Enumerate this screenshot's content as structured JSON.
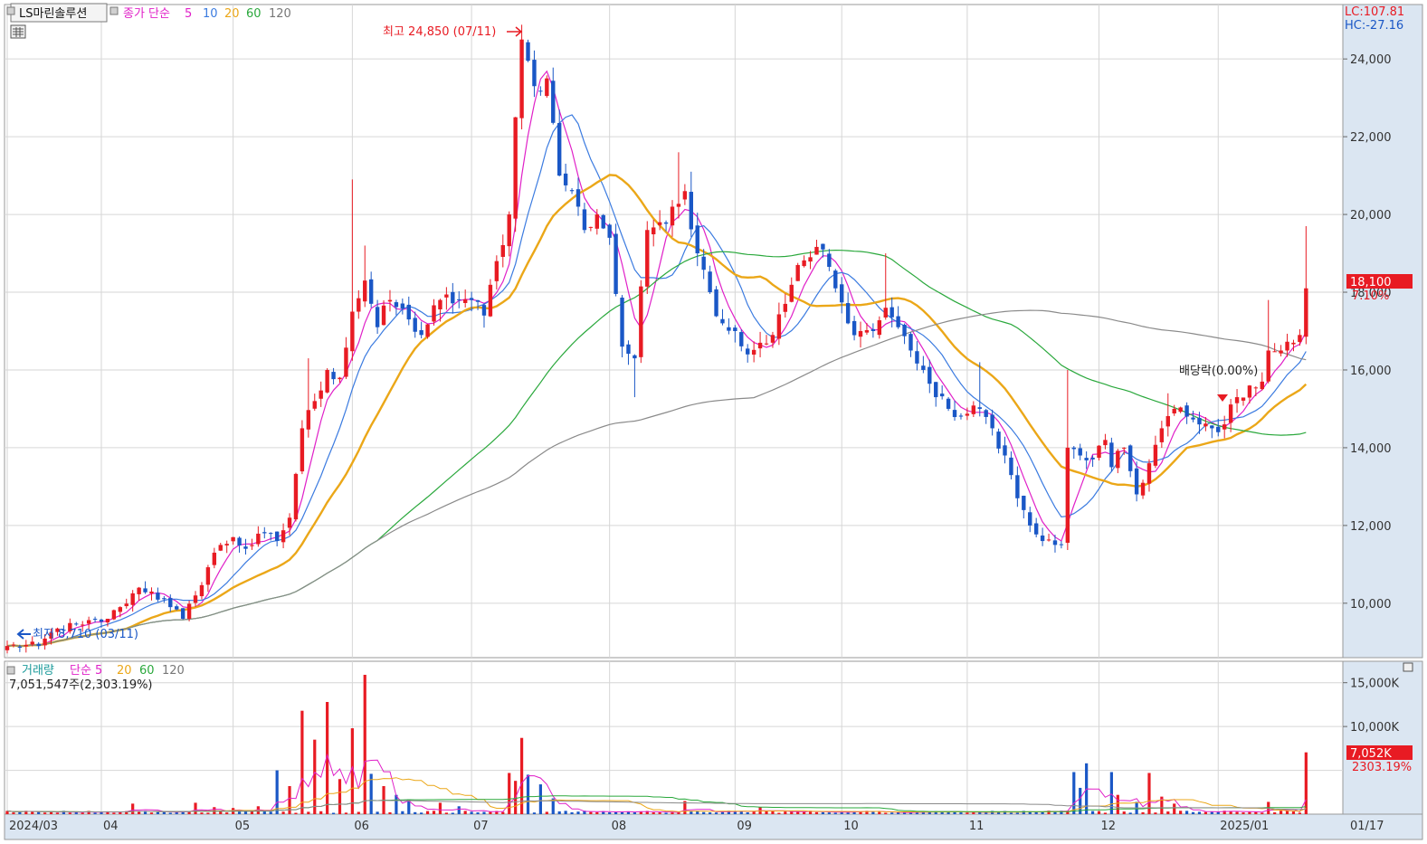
{
  "header": {
    "symbol": "LS마린솔루션",
    "ma_legend": [
      "종가 단순",
      "5",
      "10",
      "20",
      "60",
      "120"
    ],
    "lc": "LC:107.81",
    "hc": "HC:-27.16"
  },
  "colors": {
    "up": "#e81b23",
    "down": "#1a57c6",
    "ma5": "#e020c8",
    "ma10": "#3b7be0",
    "ma20": "#eba718",
    "ma60": "#2aa83c",
    "ma120": "#8a8a8a",
    "panel_bg": "#dbe6f2",
    "grid": "#d6d6d6"
  },
  "annotations": {
    "high": "최고 24,850 (07/11)",
    "low": "최저 8,710 (03/11)",
    "dividend": "배당락(0.00%)"
  },
  "price_badge": {
    "value": "18,100",
    "pct": "7.10%"
  },
  "volume_legend": {
    "label": "거래량",
    "ma": [
      "단순 5",
      "20",
      "60",
      "120"
    ],
    "current": "7,051,547주(2,303.19%)"
  },
  "volume_badge": {
    "value": "7,052K",
    "pct": "2303.19%"
  },
  "chart_data": [
    {
      "type": "candlestick",
      "ylim": [
        8600,
        25400
      ],
      "y_ticks": [
        {
          "value": 10000,
          "label": "10,000"
        },
        {
          "value": 12000,
          "label": "12,000"
        },
        {
          "value": 14000,
          "label": "14,000"
        },
        {
          "value": 16000,
          "label": "16,000"
        },
        {
          "value": 18000,
          "label": "18,000"
        },
        {
          "value": 20000,
          "label": "20,000"
        },
        {
          "value": 22000,
          "label": "22,000"
        },
        {
          "value": 24000,
          "label": "24,000"
        }
      ],
      "x_ticks": [
        {
          "index": 0,
          "label": "2024/03"
        },
        {
          "index": 15,
          "label": "04"
        },
        {
          "index": 36,
          "label": "05"
        },
        {
          "index": 55,
          "label": "06"
        },
        {
          "index": 74,
          "label": "07"
        },
        {
          "index": 96,
          "label": "08"
        },
        {
          "index": 116,
          "label": "09"
        },
        {
          "index": 133,
          "label": "10"
        },
        {
          "index": 153,
          "label": "11"
        },
        {
          "index": 174,
          "label": "12"
        },
        {
          "index": 193,
          "label": "2025/01"
        },
        {
          "index": 212,
          "label": "01/17"
        }
      ],
      "anchors": [
        [
          0,
          8900
        ],
        [
          5,
          8900
        ],
        [
          8,
          9350
        ],
        [
          12,
          9450
        ],
        [
          16,
          9600
        ],
        [
          18,
          9900
        ],
        [
          21,
          10400
        ],
        [
          23,
          10300
        ],
        [
          26,
          9900
        ],
        [
          28,
          9600
        ],
        [
          30,
          10200
        ],
        [
          33,
          11300
        ],
        [
          36,
          11700
        ],
        [
          38,
          11400
        ],
        [
          41,
          11800
        ],
        [
          43,
          11600
        ],
        [
          45,
          12200
        ],
        [
          47,
          14500
        ],
        [
          49,
          15200
        ],
        [
          51,
          16000
        ],
        [
          53,
          15800
        ],
        [
          55,
          17500
        ],
        [
          57,
          18300
        ],
        [
          59,
          17100
        ],
        [
          61,
          17800
        ],
        [
          64,
          17300
        ],
        [
          66,
          16900
        ],
        [
          69,
          17800
        ],
        [
          72,
          17800
        ],
        [
          74,
          17800
        ],
        [
          76,
          17400
        ],
        [
          78,
          18800
        ],
        [
          80,
          20000
        ],
        [
          81,
          22500
        ],
        [
          82,
          24500
        ],
        [
          84,
          23300
        ],
        [
          86,
          23500
        ],
        [
          88,
          21000
        ],
        [
          90,
          20600
        ],
        [
          92,
          19600
        ],
        [
          94,
          20000
        ],
        [
          96,
          19400
        ],
        [
          98,
          16600
        ],
        [
          100,
          16300
        ],
        [
          102,
          19600
        ],
        [
          104,
          19800
        ],
        [
          106,
          20200
        ],
        [
          108,
          20600
        ],
        [
          110,
          19000
        ],
        [
          112,
          18000
        ],
        [
          114,
          17200
        ],
        [
          116,
          17000
        ],
        [
          118,
          16400
        ],
        [
          120,
          16700
        ],
        [
          122,
          16900
        ],
        [
          124,
          17700
        ],
        [
          126,
          18700
        ],
        [
          128,
          18900
        ],
        [
          130,
          19100
        ],
        [
          132,
          18100
        ],
        [
          134,
          17200
        ],
        [
          136,
          17000
        ],
        [
          138,
          17000
        ],
        [
          140,
          17600
        ],
        [
          142,
          17100
        ],
        [
          144,
          16500
        ],
        [
          146,
          16000
        ],
        [
          148,
          15300
        ],
        [
          150,
          15000
        ],
        [
          152,
          14800
        ],
        [
          155,
          15000
        ],
        [
          157,
          14500
        ],
        [
          159,
          13800
        ],
        [
          161,
          12700
        ],
        [
          163,
          12000
        ],
        [
          165,
          11600
        ],
        [
          167,
          11500
        ],
        [
          168,
          11500
        ],
        [
          169,
          14000
        ],
        [
          171,
          13800
        ],
        [
          173,
          13700
        ],
        [
          175,
          14200
        ],
        [
          176,
          13500
        ],
        [
          178,
          14000
        ],
        [
          180,
          12800
        ],
        [
          182,
          13600
        ],
        [
          184,
          14500
        ],
        [
          186,
          15000
        ],
        [
          188,
          14800
        ],
        [
          190,
          14600
        ],
        [
          192,
          14500
        ],
        [
          194,
          14600
        ],
        [
          196,
          15300
        ],
        [
          198,
          15600
        ],
        [
          200,
          15700
        ],
        [
          201,
          16500
        ],
        [
          203,
          16500
        ],
        [
          205,
          16700
        ],
        [
          206,
          16900
        ],
        [
          207,
          18100
        ]
      ],
      "wick_spikes": [
        {
          "index": 48,
          "high": 16300
        },
        {
          "index": 55,
          "high": 20900
        },
        {
          "index": 57,
          "high": 19200
        },
        {
          "index": 82,
          "high": 24850
        },
        {
          "index": 83,
          "high": 24400
        },
        {
          "index": 98,
          "high": 17500
        },
        {
          "index": 100,
          "low": 15300
        },
        {
          "index": 107,
          "high": 21600
        },
        {
          "index": 109,
          "high": 21100
        },
        {
          "index": 140,
          "high": 19000
        },
        {
          "index": 155,
          "high": 16200
        },
        {
          "index": 169,
          "high": 16000
        },
        {
          "index": 185,
          "high": 15400
        },
        {
          "index": 201,
          "high": 17800
        },
        {
          "index": 207,
          "high": 19700
        },
        {
          "index": 0,
          "low": 8710
        }
      ],
      "last_index": 207,
      "total_slots": 213
    },
    {
      "type": "bar",
      "name": "거래량",
      "ylim": [
        0,
        16000
      ],
      "y_ticks": [
        {
          "value": 10000,
          "label": "10,000K"
        },
        {
          "value": 15000,
          "label": "15,000K"
        }
      ],
      "volume_spikes": [
        {
          "index": 20,
          "value": 1200
        },
        {
          "index": 30,
          "value": 1300
        },
        {
          "index": 33,
          "value": 800
        },
        {
          "index": 36,
          "value": 700
        },
        {
          "index": 40,
          "value": 900
        },
        {
          "index": 43,
          "value": 5000
        },
        {
          "index": 45,
          "value": 3200
        },
        {
          "index": 47,
          "value": 11800
        },
        {
          "index": 49,
          "value": 8500
        },
        {
          "index": 51,
          "value": 12800
        },
        {
          "index": 53,
          "value": 4000
        },
        {
          "index": 55,
          "value": 9800
        },
        {
          "index": 57,
          "value": 15900
        },
        {
          "index": 58,
          "value": 4600
        },
        {
          "index": 60,
          "value": 3200
        },
        {
          "index": 62,
          "value": 2200
        },
        {
          "index": 64,
          "value": 1700
        },
        {
          "index": 69,
          "value": 1300
        },
        {
          "index": 72,
          "value": 900
        },
        {
          "index": 80,
          "value": 4700
        },
        {
          "index": 81,
          "value": 3800
        },
        {
          "index": 82,
          "value": 8700
        },
        {
          "index": 83,
          "value": 4500
        },
        {
          "index": 85,
          "value": 3400
        },
        {
          "index": 87,
          "value": 1800
        },
        {
          "index": 108,
          "value": 1500
        },
        {
          "index": 120,
          "value": 800
        },
        {
          "index": 170,
          "value": 4800
        },
        {
          "index": 171,
          "value": 3000
        },
        {
          "index": 172,
          "value": 5800
        },
        {
          "index": 176,
          "value": 4800
        },
        {
          "index": 177,
          "value": 2200
        },
        {
          "index": 180,
          "value": 1400
        },
        {
          "index": 182,
          "value": 4700
        },
        {
          "index": 184,
          "value": 2000
        },
        {
          "index": 186,
          "value": 1200
        },
        {
          "index": 201,
          "value": 1400
        },
        {
          "index": 207,
          "value": 7052
        }
      ]
    }
  ]
}
